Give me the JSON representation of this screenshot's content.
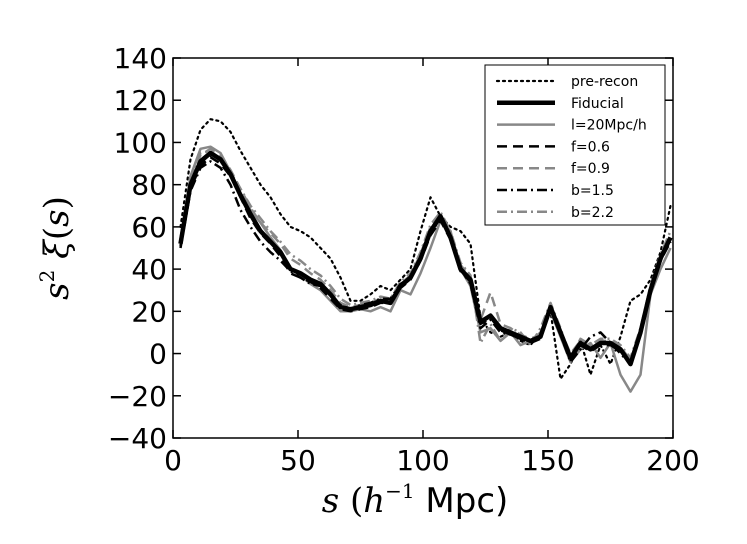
{
  "chart_data": {
    "type": "line",
    "xlabel": "s (h^-1 Mpc)",
    "ylabel": "s^2 ξ(s)",
    "xlim": [
      0,
      200
    ],
    "ylim": [
      -40,
      140
    ],
    "xticks": [
      0,
      50,
      100,
      150,
      200
    ],
    "yticks": [
      140,
      120,
      100,
      80,
      60,
      40,
      20,
      0,
      -20,
      -40
    ],
    "xtick_labels": [
      "0",
      "50",
      "100",
      "150",
      "200"
    ],
    "ytick_labels": [
      "140",
      "120",
      "100",
      "80",
      "60",
      "40",
      "20",
      "0",
      "−20",
      "−40"
    ],
    "legend_position": "top-right",
    "series": [
      {
        "name": "pre-recon",
        "color": "#000000",
        "style": "dotted",
        "width": 2.2,
        "x": [
          3,
          7,
          11,
          15,
          19,
          23,
          27,
          31,
          35,
          39,
          43,
          47,
          51,
          55,
          59,
          63,
          67,
          71,
          75,
          79,
          83,
          87,
          91,
          95,
          99,
          103,
          107,
          111,
          115,
          119,
          123,
          127,
          131,
          135,
          139,
          143,
          147,
          151,
          155,
          159,
          163,
          167,
          171,
          175,
          179,
          183,
          187,
          191,
          195,
          199
        ],
        "y": [
          60,
          92,
          106,
          111,
          110,
          105,
          96,
          88,
          80,
          74,
          66,
          60,
          58,
          55,
          50,
          45,
          36,
          25,
          25,
          28,
          32,
          30,
          35,
          40,
          58,
          74,
          65,
          60,
          58,
          52,
          17,
          10,
          8,
          10,
          6,
          4,
          10,
          20,
          -12,
          -5,
          6,
          -10,
          4,
          -5,
          8,
          25,
          28,
          35,
          48,
          70
        ]
      },
      {
        "name": "Fiducial",
        "color": "#000000",
        "style": "solid",
        "width": 4.5,
        "x": [
          3,
          7,
          11,
          15,
          19,
          23,
          27,
          31,
          35,
          39,
          43,
          47,
          51,
          55,
          59,
          63,
          67,
          71,
          75,
          79,
          83,
          87,
          91,
          95,
          99,
          103,
          107,
          111,
          115,
          119,
          123,
          127,
          131,
          135,
          139,
          143,
          147,
          151,
          155,
          159,
          163,
          167,
          171,
          175,
          179,
          183,
          187,
          191,
          195,
          199
        ],
        "y": [
          52,
          80,
          91,
          95,
          92,
          85,
          75,
          66,
          58,
          53,
          48,
          40,
          38,
          35,
          33,
          28,
          22,
          21,
          22,
          23,
          25,
          24,
          32,
          36,
          45,
          58,
          65,
          55,
          40,
          35,
          15,
          18,
          12,
          10,
          8,
          6,
          8,
          22,
          10,
          -2,
          5,
          2,
          5,
          5,
          2,
          -5,
          10,
          30,
          45,
          55
        ]
      },
      {
        "name": "l=20Mpc/h",
        "color": "#888888",
        "style": "solid",
        "width": 2.5,
        "x": [
          3,
          7,
          11,
          15,
          19,
          23,
          27,
          31,
          35,
          39,
          43,
          47,
          51,
          55,
          59,
          63,
          67,
          71,
          75,
          79,
          83,
          87,
          91,
          95,
          99,
          103,
          107,
          111,
          115,
          119,
          123,
          127,
          131,
          135,
          139,
          143,
          147,
          151,
          155,
          159,
          163,
          167,
          171,
          175,
          179,
          183,
          187,
          191,
          195,
          199
        ],
        "y": [
          54,
          84,
          97,
          98,
          95,
          86,
          76,
          68,
          62,
          55,
          49,
          40,
          37,
          33,
          30,
          25,
          20,
          20,
          21,
          20,
          22,
          20,
          30,
          28,
          38,
          50,
          63,
          58,
          40,
          32,
          10,
          12,
          6,
          10,
          4,
          6,
          10,
          20,
          8,
          -4,
          2,
          5,
          -2,
          5,
          -10,
          -18,
          -10,
          28,
          40,
          50
        ]
      },
      {
        "name": "f=0.6",
        "color": "#000000",
        "style": "dashed",
        "width": 2.5,
        "x": [
          3,
          7,
          11,
          15,
          19,
          23,
          27,
          31,
          35,
          39,
          43,
          47,
          51,
          55,
          59,
          63,
          67,
          71,
          75,
          79,
          83,
          87,
          91,
          95,
          99,
          103,
          107,
          111,
          115,
          119,
          123,
          127,
          131,
          135,
          139,
          143,
          147,
          151,
          155,
          159,
          163,
          167,
          171,
          175,
          179,
          183,
          187,
          191,
          195,
          199
        ],
        "y": [
          51,
          78,
          89,
          93,
          90,
          84,
          74,
          64,
          57,
          52,
          46,
          38,
          36,
          34,
          31,
          26,
          21,
          20,
          21,
          22,
          24,
          24,
          31,
          35,
          44,
          56,
          63,
          54,
          39,
          34,
          14,
          17,
          11,
          9,
          7,
          5,
          7,
          21,
          9,
          -3,
          4,
          1,
          4,
          4,
          1,
          -4,
          9,
          29,
          44,
          54
        ]
      },
      {
        "name": "f=0.9",
        "color": "#888888",
        "style": "dashed",
        "width": 2.5,
        "x": [
          3,
          7,
          11,
          15,
          19,
          23,
          27,
          31,
          35,
          39,
          43,
          47,
          51,
          55,
          59,
          63,
          67,
          71,
          75,
          79,
          83,
          87,
          91,
          95,
          99,
          103,
          107,
          111,
          115,
          119,
          123,
          127,
          131,
          135,
          139,
          143,
          147,
          151,
          155,
          159,
          163,
          167,
          171,
          175,
          179,
          183,
          187,
          191,
          195,
          199
        ],
        "y": [
          53,
          82,
          94,
          97,
          94,
          87,
          78,
          69,
          62,
          57,
          52,
          45,
          42,
          38,
          35,
          30,
          24,
          22,
          23,
          24,
          26,
          25,
          33,
          37,
          47,
          60,
          66,
          57,
          42,
          36,
          16,
          29,
          14,
          12,
          9,
          7,
          9,
          23,
          11,
          0,
          6,
          3,
          6,
          6,
          3,
          -3,
          11,
          31,
          46,
          56
        ]
      },
      {
        "name": "b=1.5",
        "color": "#000000",
        "style": "dashdot",
        "width": 2.5,
        "x": [
          3,
          7,
          11,
          15,
          19,
          23,
          27,
          31,
          35,
          39,
          43,
          47,
          51,
          55,
          59,
          63,
          67,
          71,
          75,
          79,
          83,
          87,
          91,
          95,
          99,
          103,
          107,
          111,
          115,
          119,
          123,
          127,
          131,
          135,
          139,
          143,
          147,
          151,
          155,
          159,
          163,
          167,
          171,
          175,
          179,
          183,
          187,
          191,
          195,
          199
        ],
        "y": [
          50,
          77,
          88,
          91,
          88,
          80,
          68,
          60,
          53,
          48,
          44,
          39,
          36,
          33,
          32,
          28,
          23,
          21,
          23,
          24,
          26,
          26,
          33,
          36,
          45,
          57,
          64,
          55,
          40,
          33,
          12,
          16,
          10,
          9,
          7,
          6,
          8,
          21,
          9,
          -4,
          2,
          8,
          10,
          5,
          0,
          -5,
          10,
          29,
          44,
          53
        ]
      },
      {
        "name": "b=2.2",
        "color": "#888888",
        "style": "dashdot",
        "width": 2.5,
        "x": [
          3,
          7,
          11,
          15,
          19,
          23,
          27,
          31,
          35,
          39,
          43,
          47,
          51,
          55,
          59,
          63,
          67,
          71,
          75,
          79,
          83,
          87,
          91,
          95,
          99,
          103,
          107,
          111,
          115,
          119,
          123,
          127,
          131,
          135,
          139,
          143,
          147,
          151,
          155,
          159,
          163,
          167,
          171,
          175,
          179,
          183,
          187,
          191,
          195,
          199
        ],
        "y": [
          54,
          83,
          95,
          96,
          92,
          86,
          78,
          70,
          64,
          58,
          53,
          47,
          44,
          40,
          37,
          32,
          26,
          23,
          24,
          25,
          27,
          26,
          34,
          38,
          48,
          61,
          67,
          58,
          43,
          37,
          5,
          14,
          6,
          12,
          10,
          4,
          12,
          24,
          12,
          -2,
          7,
          4,
          7,
          7,
          4,
          -2,
          12,
          32,
          47,
          58
        ]
      }
    ]
  }
}
